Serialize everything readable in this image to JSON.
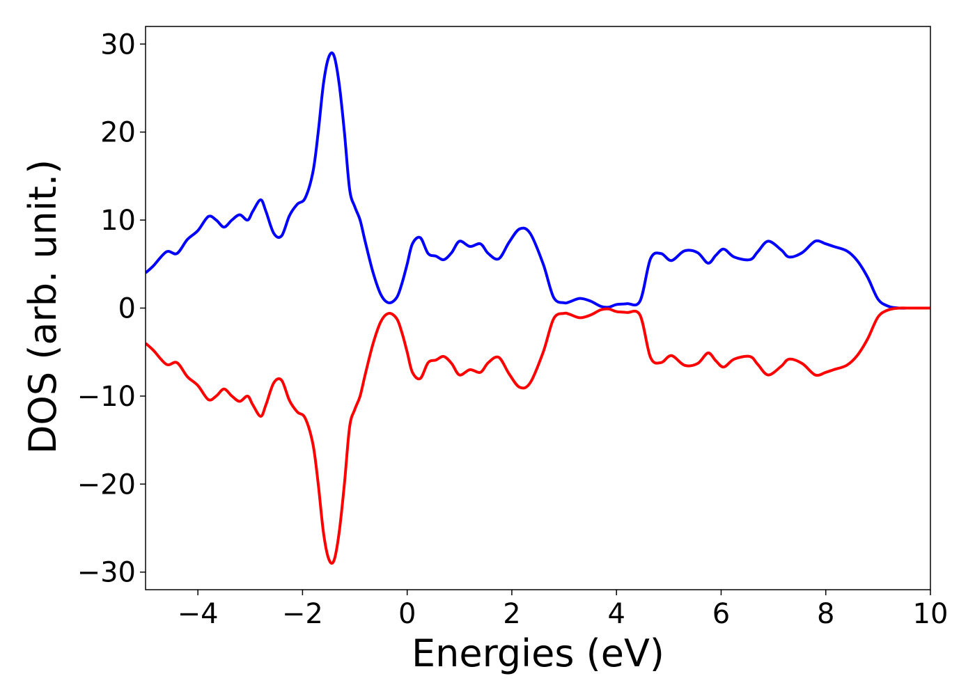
{
  "chart_data": {
    "type": "line",
    "title": "",
    "xlabel": "Energies (eV)",
    "ylabel": "DOS (arb. unit.)",
    "xlim": [
      -5,
      10
    ],
    "ylim": [
      -32,
      32
    ],
    "grid": false,
    "x_ticks": [
      -4,
      -2,
      0,
      2,
      4,
      6,
      8,
      10
    ],
    "x_tick_labels": [
      "−4",
      "−2",
      "0",
      "2",
      "4",
      "6",
      "8",
      "10"
    ],
    "y_ticks": [
      30,
      20,
      10,
      0,
      -10,
      -20,
      -30
    ],
    "y_tick_labels": [
      "30",
      "20",
      "10",
      "0",
      "−10",
      "−20",
      "−30"
    ],
    "series": [
      {
        "color": "#0000ff",
        "x": [
          -5.0,
          -4.85,
          -4.6,
          -4.4,
          -4.2,
          -4.0,
          -3.8,
          -3.65,
          -3.5,
          -3.35,
          -3.2,
          -3.05,
          -2.95,
          -2.8,
          -2.7,
          -2.55,
          -2.4,
          -2.25,
          -2.1,
          -1.95,
          -1.8,
          -1.7,
          -1.6,
          -1.5,
          -1.4,
          -1.3,
          -1.2,
          -1.1,
          -1.0,
          -0.9,
          -0.8,
          -0.65,
          -0.5,
          -0.35,
          -0.2,
          -0.1,
          0.0,
          0.1,
          0.25,
          0.4,
          0.55,
          0.7,
          0.85,
          1.0,
          1.2,
          1.4,
          1.55,
          1.75,
          1.95,
          2.15,
          2.35,
          2.6,
          2.8,
          3.0,
          3.1,
          3.3,
          3.5,
          3.7,
          3.85,
          4.0,
          4.2,
          4.45,
          4.65,
          4.85,
          5.05,
          5.3,
          5.55,
          5.75,
          5.9,
          6.05,
          6.25,
          6.55,
          6.7,
          6.9,
          7.15,
          7.3,
          7.55,
          7.8,
          8.0,
          8.15,
          8.4,
          8.6,
          8.8,
          9.0,
          9.2,
          9.4,
          9.55,
          9.7,
          9.85,
          10.0
        ],
        "y": [
          4.0,
          4.8,
          6.4,
          6.2,
          7.8,
          8.8,
          10.4,
          10.0,
          9.2,
          10.0,
          10.6,
          10.0,
          11.0,
          12.3,
          11.0,
          8.5,
          8.2,
          10.5,
          11.8,
          12.5,
          15.5,
          20.0,
          25.5,
          28.5,
          28.7,
          25.5,
          20.0,
          13.5,
          11.5,
          10.0,
          7.5,
          4.0,
          1.5,
          0.6,
          1.2,
          2.8,
          5.0,
          7.3,
          8.0,
          6.2,
          5.9,
          5.5,
          6.3,
          7.6,
          7.0,
          7.3,
          6.2,
          5.6,
          7.5,
          9.0,
          8.5,
          5.0,
          1.2,
          0.6,
          0.7,
          1.1,
          0.8,
          0.2,
          0.1,
          0.4,
          0.5,
          0.8,
          5.6,
          6.2,
          5.4,
          6.5,
          6.3,
          5.1,
          6.0,
          6.7,
          5.8,
          5.5,
          6.4,
          7.6,
          6.6,
          5.8,
          6.3,
          7.6,
          7.3,
          7.0,
          6.5,
          5.4,
          3.5,
          1.0,
          0.2,
          0.0,
          0.0,
          0.0,
          0.0,
          0.0
        ]
      },
      {
        "color": "#ff0000",
        "x": [
          -5.0,
          -4.85,
          -4.6,
          -4.4,
          -4.2,
          -4.0,
          -3.8,
          -3.65,
          -3.5,
          -3.35,
          -3.2,
          -3.05,
          -2.95,
          -2.8,
          -2.7,
          -2.55,
          -2.4,
          -2.25,
          -2.1,
          -1.95,
          -1.8,
          -1.7,
          -1.6,
          -1.5,
          -1.4,
          -1.3,
          -1.2,
          -1.1,
          -1.0,
          -0.9,
          -0.8,
          -0.65,
          -0.5,
          -0.35,
          -0.2,
          -0.1,
          0.0,
          0.1,
          0.25,
          0.4,
          0.55,
          0.7,
          0.85,
          1.0,
          1.2,
          1.4,
          1.55,
          1.75,
          1.95,
          2.15,
          2.35,
          2.6,
          2.8,
          3.0,
          3.1,
          3.3,
          3.5,
          3.7,
          3.85,
          4.0,
          4.2,
          4.45,
          4.65,
          4.85,
          5.05,
          5.3,
          5.55,
          5.75,
          5.9,
          6.05,
          6.25,
          6.55,
          6.7,
          6.9,
          7.15,
          7.3,
          7.55,
          7.8,
          8.0,
          8.15,
          8.4,
          8.6,
          8.8,
          9.0,
          9.2,
          9.4,
          9.55,
          9.7,
          9.85,
          10.0
        ],
        "y": [
          -4.0,
          -4.8,
          -6.4,
          -6.2,
          -7.8,
          -8.8,
          -10.4,
          -10.0,
          -9.2,
          -10.0,
          -10.6,
          -10.0,
          -11.0,
          -12.3,
          -11.0,
          -8.5,
          -8.2,
          -10.5,
          -11.8,
          -12.5,
          -15.5,
          -20.0,
          -25.5,
          -28.5,
          -28.7,
          -25.5,
          -20.0,
          -13.5,
          -11.5,
          -10.0,
          -7.5,
          -4.0,
          -1.5,
          -0.6,
          -1.2,
          -2.8,
          -5.0,
          -7.3,
          -8.0,
          -6.2,
          -5.9,
          -5.5,
          -6.3,
          -7.6,
          -7.0,
          -7.3,
          -6.2,
          -5.6,
          -7.5,
          -9.0,
          -8.5,
          -5.0,
          -1.2,
          -0.6,
          -0.7,
          -1.1,
          -0.8,
          -0.2,
          -0.1,
          -0.4,
          -0.5,
          -0.8,
          -5.6,
          -6.2,
          -5.4,
          -6.5,
          -6.3,
          -5.1,
          -6.0,
          -6.7,
          -5.8,
          -5.5,
          -6.4,
          -7.6,
          -6.6,
          -5.8,
          -6.3,
          -7.6,
          -7.3,
          -7.0,
          -6.5,
          -5.4,
          -3.5,
          -1.0,
          -0.2,
          0.0,
          0.0,
          0.0,
          0.0,
          0.0
        ]
      }
    ]
  }
}
